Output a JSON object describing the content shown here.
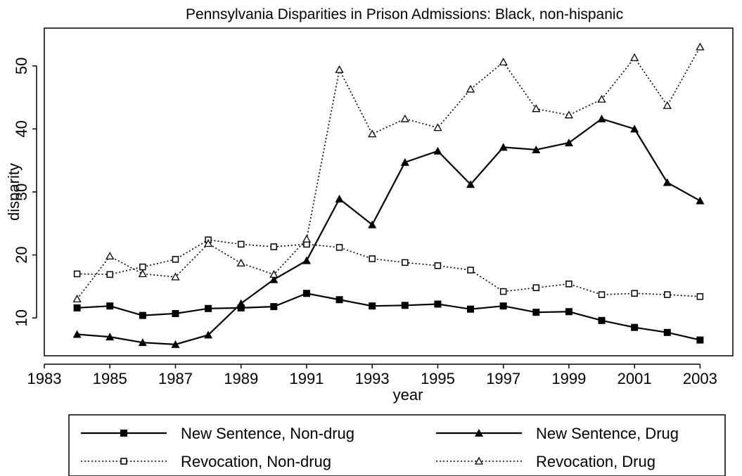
{
  "chart_data": {
    "type": "line",
    "title": "Pennsylvania Disparities in Prison Admissions: Black, non-hispanic",
    "xlabel": "year",
    "ylabel": "disparity",
    "x": [
      1984,
      1985,
      1986,
      1987,
      1988,
      1989,
      1990,
      1991,
      1992,
      1993,
      1994,
      1995,
      1996,
      1997,
      1998,
      1999,
      2000,
      2001,
      2002,
      2003
    ],
    "xlim": [
      1983,
      2004
    ],
    "ylim": [
      4,
      56
    ],
    "xticks": [
      "1983",
      "1985",
      "1987",
      "1989",
      "1991",
      "1993",
      "1995",
      "1997",
      "1999",
      "2001",
      "2003"
    ],
    "yticks": [
      "10",
      "20",
      "30",
      "40",
      "50"
    ],
    "grid": false,
    "legend_position": "bottom",
    "series": [
      {
        "name": "New Sentence, Non-drug",
        "line": "solid",
        "marker": "filled-square",
        "values": [
          11.6,
          11.9,
          10.4,
          10.7,
          11.5,
          11.6,
          11.8,
          13.9,
          12.9,
          11.9,
          12.0,
          12.2,
          11.4,
          11.9,
          10.9,
          11.0,
          9.6,
          8.5,
          7.7,
          6.5
        ]
      },
      {
        "name": "New Sentence, Drug",
        "line": "solid",
        "marker": "filled-triangle",
        "values": [
          7.4,
          7.0,
          6.1,
          5.8,
          7.3,
          12.3,
          16.1,
          19.1,
          28.9,
          24.8,
          34.7,
          36.5,
          31.2,
          37.1,
          36.7,
          37.8,
          41.6,
          40.0,
          31.5,
          28.6
        ]
      },
      {
        "name": "Revocation, Non-drug",
        "line": "dotted",
        "marker": "hollow-square",
        "values": [
          17.0,
          16.9,
          18.1,
          19.3,
          22.4,
          21.7,
          21.3,
          21.7,
          21.2,
          19.4,
          18.8,
          18.3,
          17.6,
          14.2,
          14.8,
          15.4,
          13.7,
          13.9,
          13.7,
          13.4
        ]
      },
      {
        "name": "Revocation, Drug",
        "line": "dotted",
        "marker": "hollow-triangle",
        "values": [
          13.0,
          19.8,
          17.0,
          16.5,
          21.8,
          18.7,
          16.9,
          22.5,
          49.4,
          39.2,
          41.6,
          40.2,
          46.3,
          50.6,
          43.2,
          42.2,
          44.7,
          51.3,
          43.7,
          53.0
        ]
      }
    ]
  }
}
